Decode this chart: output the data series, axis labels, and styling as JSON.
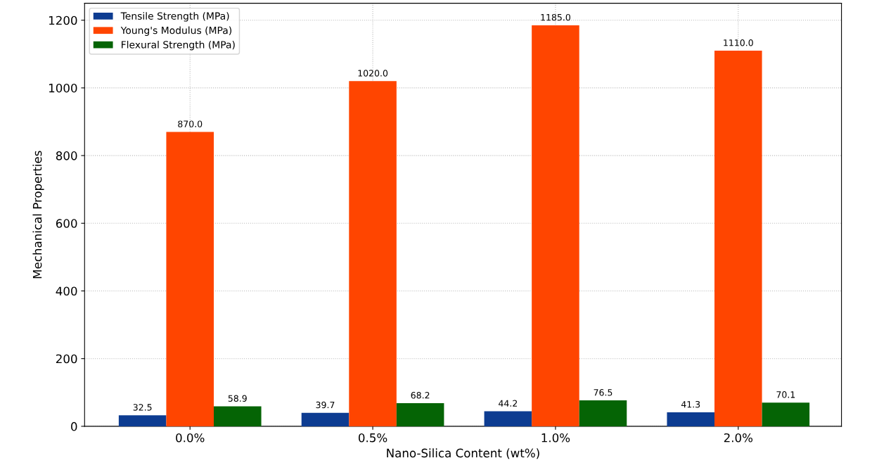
{
  "chart_data": {
    "type": "bar",
    "xlabel": "Nano-Silica Content (wt%)",
    "ylabel": "Mechanical Properties",
    "categories": [
      "0.0%",
      "0.5%",
      "1.0%",
      "2.0%"
    ],
    "series": [
      {
        "name": "Tensile Strength (MPa)",
        "color": "#0d3c91",
        "values": [
          32.5,
          39.7,
          44.2,
          41.3
        ],
        "value_labels": [
          "32.5",
          "39.7",
          "44.2",
          "41.3"
        ]
      },
      {
        "name": "Young's Modulus (MPa)",
        "color": "#ff4500",
        "values": [
          870,
          1020,
          1185,
          1110
        ],
        "value_labels": [
          "870.0",
          "1020.0",
          "1185.0",
          "1110.0"
        ]
      },
      {
        "name": "Flexural Strength (MPa)",
        "color": "#056405",
        "values": [
          58.9,
          68.2,
          76.5,
          70.1
        ],
        "value_labels": [
          "58.9",
          "68.2",
          "76.5",
          "70.1"
        ]
      }
    ],
    "ylim": [
      0,
      1250
    ],
    "yticks": [
      0,
      200,
      400,
      600,
      800,
      1000,
      1200
    ],
    "grid": true,
    "legend": "top left"
  }
}
